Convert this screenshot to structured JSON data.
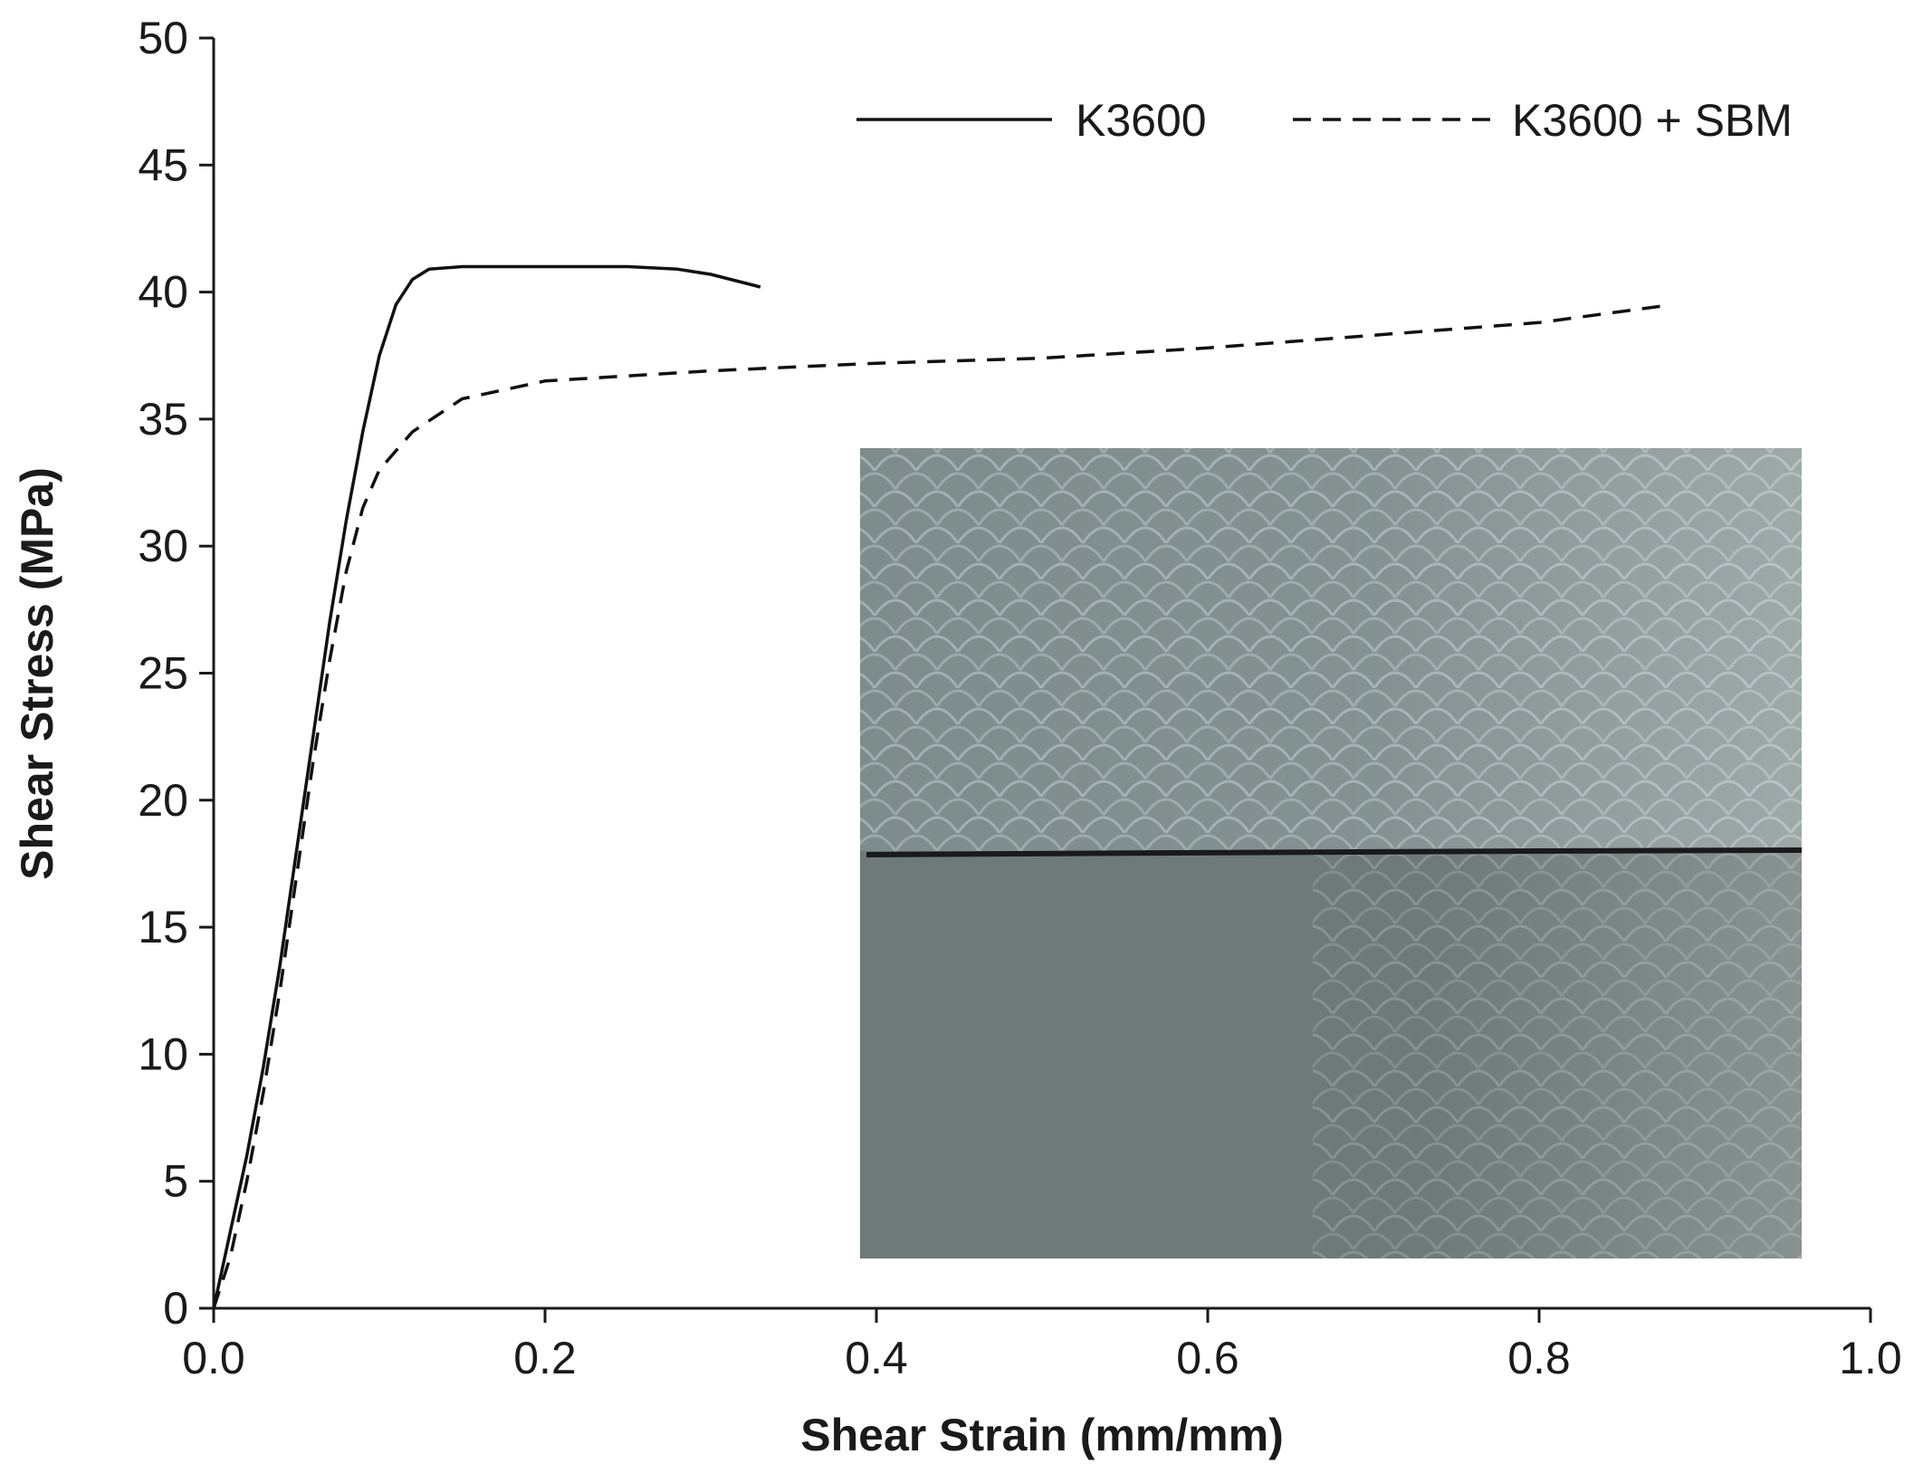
{
  "chart_data": {
    "type": "line",
    "xlabel": "Shear Strain (mm/mm)",
    "ylabel": "Shear Stress (MPa)",
    "xlim": [
      0.0,
      1.0
    ],
    "ylim": [
      0,
      50
    ],
    "x_ticks": [
      0.0,
      0.2,
      0.4,
      0.6,
      0.8,
      1.0
    ],
    "x_tick_labels": [
      "0.0",
      "0.2",
      "0.4",
      "0.6",
      "0.8",
      "1.0"
    ],
    "y_ticks": [
      0,
      5,
      10,
      15,
      20,
      25,
      30,
      35,
      40,
      45,
      50
    ],
    "y_tick_labels": [
      "0",
      "5",
      "10",
      "15",
      "20",
      "25",
      "30",
      "35",
      "40",
      "45",
      "50"
    ],
    "grid": false,
    "legend_position": "top-right",
    "series": [
      {
        "name": "K3600",
        "line_style": "solid",
        "color": "#111111",
        "points": [
          [
            0.0,
            0.0
          ],
          [
            0.005,
            1.5
          ],
          [
            0.01,
            3.0
          ],
          [
            0.02,
            6.0
          ],
          [
            0.03,
            9.5
          ],
          [
            0.04,
            13.5
          ],
          [
            0.05,
            18.0
          ],
          [
            0.06,
            22.5
          ],
          [
            0.07,
            27.0
          ],
          [
            0.08,
            31.0
          ],
          [
            0.09,
            34.5
          ],
          [
            0.1,
            37.5
          ],
          [
            0.11,
            39.5
          ],
          [
            0.12,
            40.5
          ],
          [
            0.13,
            40.9
          ],
          [
            0.15,
            41.0
          ],
          [
            0.2,
            41.0
          ],
          [
            0.25,
            41.0
          ],
          [
            0.28,
            40.9
          ],
          [
            0.3,
            40.7
          ],
          [
            0.33,
            40.2
          ]
        ]
      },
      {
        "name": "K3600 + SBM",
        "line_style": "dashed",
        "color": "#111111",
        "points": [
          [
            0.0,
            0.0
          ],
          [
            0.01,
            2.0
          ],
          [
            0.02,
            5.0
          ],
          [
            0.03,
            8.5
          ],
          [
            0.04,
            12.5
          ],
          [
            0.05,
            17.0
          ],
          [
            0.06,
            21.5
          ],
          [
            0.07,
            25.5
          ],
          [
            0.08,
            29.0
          ],
          [
            0.09,
            31.5
          ],
          [
            0.1,
            33.0
          ],
          [
            0.12,
            34.5
          ],
          [
            0.15,
            35.8
          ],
          [
            0.2,
            36.5
          ],
          [
            0.3,
            36.9
          ],
          [
            0.4,
            37.2
          ],
          [
            0.5,
            37.4
          ],
          [
            0.6,
            37.8
          ],
          [
            0.7,
            38.3
          ],
          [
            0.8,
            38.8
          ],
          [
            0.88,
            39.5
          ]
        ]
      }
    ]
  },
  "inset": {
    "description_icon": "specimen-photo",
    "colors": {
      "base": "#6e7a78",
      "upper": "#7f8c8c",
      "highlight": "#b8c6cc",
      "crack": "#1a1a1a"
    }
  }
}
